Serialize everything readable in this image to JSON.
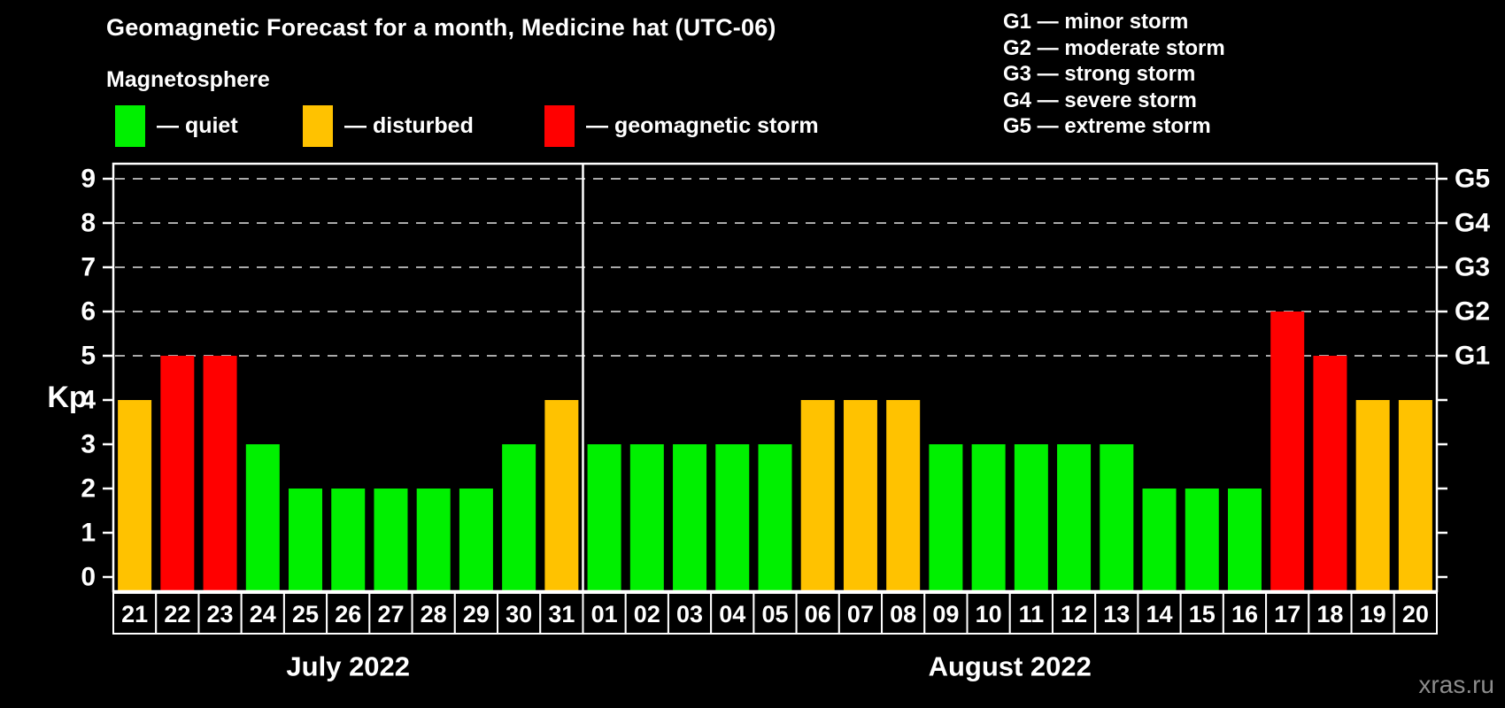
{
  "title": "Geomagnetic Forecast for a month, Medicine hat (UTC-06)",
  "subtitle": "Magnetosphere",
  "legend": {
    "items": [
      {
        "key": "quiet",
        "label": "— quiet"
      },
      {
        "key": "disturbed",
        "label": "— disturbed"
      },
      {
        "key": "storm",
        "label": "— geomagnetic storm"
      }
    ]
  },
  "g_scale_legend": {
    "lines": [
      "G1 — minor storm",
      "G2 — moderate storm",
      "G3 — strong storm",
      "G4 — severe storm",
      "G5 — extreme storm"
    ]
  },
  "watermark": "xras.ru",
  "colors": {
    "quiet": "#00F000",
    "disturbed": "#FFC200",
    "storm": "#FF0000",
    "axis": "#FFFFFF",
    "grid": "#AAAAAA",
    "day_label_text": "#FFFFFF",
    "background": "#000000"
  },
  "chart_data": {
    "type": "bar",
    "title": "Geomagnetic Forecast for a month, Medicine hat (UTC-06)",
    "ylabel": "Kp",
    "ylim": [
      0,
      9
    ],
    "y_ticks": [
      0,
      1,
      2,
      3,
      4,
      5,
      6,
      7,
      8,
      9
    ],
    "gridlines_at": [
      5,
      6,
      7,
      8,
      9
    ],
    "grid_style": "dashed",
    "legend_position": "top",
    "right_axis_labels": [
      {
        "value": 5,
        "label": "G1"
      },
      {
        "value": 6,
        "label": "G2"
      },
      {
        "value": 7,
        "label": "G3"
      },
      {
        "value": 8,
        "label": "G4"
      },
      {
        "value": 9,
        "label": "G5"
      }
    ],
    "categories": [
      "21",
      "22",
      "23",
      "24",
      "25",
      "26",
      "27",
      "28",
      "29",
      "30",
      "31",
      "01",
      "02",
      "03",
      "04",
      "05",
      "06",
      "07",
      "08",
      "09",
      "10",
      "11",
      "12",
      "13",
      "14",
      "15",
      "16",
      "17",
      "18",
      "19",
      "20"
    ],
    "values": [
      4,
      5,
      5,
      3,
      2,
      2,
      2,
      2,
      2,
      3,
      4,
      3,
      3,
      3,
      3,
      3,
      4,
      4,
      4,
      3,
      3,
      3,
      3,
      3,
      2,
      2,
      2,
      6,
      5,
      4,
      4
    ],
    "bar_color_keys": [
      "disturbed",
      "storm",
      "storm",
      "quiet",
      "quiet",
      "quiet",
      "quiet",
      "quiet",
      "quiet",
      "quiet",
      "disturbed",
      "quiet",
      "quiet",
      "quiet",
      "quiet",
      "quiet",
      "disturbed",
      "disturbed",
      "disturbed",
      "quiet",
      "quiet",
      "quiet",
      "quiet",
      "quiet",
      "quiet",
      "quiet",
      "quiet",
      "storm",
      "storm",
      "disturbed",
      "disturbed"
    ],
    "groups": [
      {
        "label": "July 2022",
        "count": 11
      },
      {
        "label": "August 2022",
        "count": 20
      }
    ]
  }
}
